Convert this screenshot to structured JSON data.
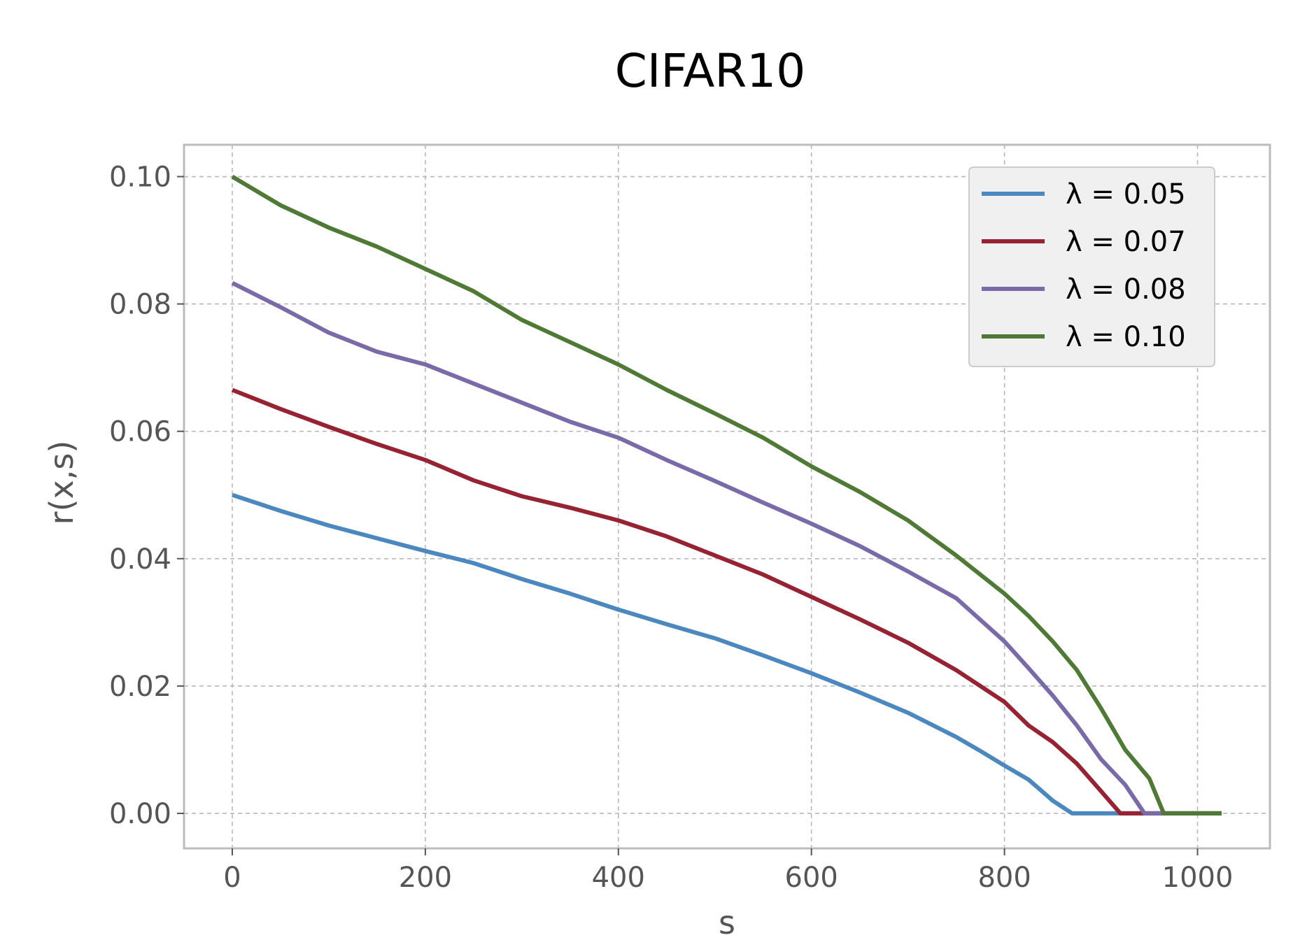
{
  "chart_data": {
    "type": "line",
    "title": "CIFAR10",
    "xlabel": "s",
    "ylabel": "r(x,s)",
    "xlim": [
      -50,
      1075
    ],
    "ylim": [
      -0.0055,
      0.105
    ],
    "xticks": [
      0,
      200,
      400,
      600,
      800,
      1000
    ],
    "xtick_labels": [
      "0",
      "200",
      "400",
      "600",
      "800",
      "1000"
    ],
    "yticks": [
      0.0,
      0.02,
      0.04,
      0.06,
      0.08,
      0.1
    ],
    "ytick_labels": [
      "0.00",
      "0.02",
      "0.04",
      "0.06",
      "0.08",
      "0.10"
    ],
    "grid": true,
    "legend_position": "top-right",
    "series": [
      {
        "name": "λ = 0.05",
        "color": "#4a88bf",
        "x": [
          0,
          50,
          100,
          150,
          200,
          250,
          300,
          350,
          400,
          450,
          500,
          550,
          600,
          650,
          700,
          750,
          775,
          800,
          825,
          850,
          870,
          920,
          1025
        ],
        "y": [
          0.05,
          0.0475,
          0.0452,
          0.0432,
          0.0412,
          0.0393,
          0.0368,
          0.0345,
          0.032,
          0.0297,
          0.0275,
          0.0248,
          0.022,
          0.019,
          0.0158,
          0.012,
          0.0098,
          0.0075,
          0.0053,
          0.002,
          0.0,
          0.0,
          0.0
        ]
      },
      {
        "name": "λ = 0.07",
        "color": "#962232",
        "x": [
          0,
          50,
          100,
          150,
          200,
          250,
          300,
          350,
          400,
          450,
          500,
          550,
          600,
          650,
          700,
          750,
          800,
          825,
          850,
          875,
          900,
          920,
          950,
          1025
        ],
        "y": [
          0.0665,
          0.0635,
          0.0607,
          0.058,
          0.0555,
          0.0523,
          0.0498,
          0.048,
          0.046,
          0.0435,
          0.0405,
          0.0375,
          0.034,
          0.0305,
          0.0268,
          0.0225,
          0.0175,
          0.0138,
          0.0112,
          0.0078,
          0.0035,
          0.0,
          0.0,
          0.0
        ]
      },
      {
        "name": "λ = 0.08",
        "color": "#7a6aaa",
        "x": [
          0,
          50,
          100,
          150,
          200,
          250,
          300,
          350,
          400,
          450,
          500,
          550,
          600,
          650,
          700,
          750,
          800,
          825,
          850,
          875,
          900,
          925,
          945,
          965,
          1025
        ],
        "y": [
          0.0833,
          0.0795,
          0.0755,
          0.0725,
          0.0705,
          0.0675,
          0.0645,
          0.0615,
          0.059,
          0.0555,
          0.0522,
          0.0488,
          0.0455,
          0.042,
          0.038,
          0.0338,
          0.027,
          0.0228,
          0.0185,
          0.0138,
          0.0085,
          0.0045,
          0.0,
          0.0,
          0.0
        ]
      },
      {
        "name": "λ = 0.10",
        "color": "#4f7a35",
        "x": [
          0,
          50,
          100,
          150,
          200,
          250,
          300,
          350,
          400,
          450,
          500,
          550,
          600,
          650,
          700,
          750,
          775,
          800,
          825,
          850,
          875,
          900,
          925,
          950,
          965,
          1025
        ],
        "y": [
          0.1,
          0.0955,
          0.092,
          0.089,
          0.0855,
          0.082,
          0.0775,
          0.074,
          0.0705,
          0.0665,
          0.0628,
          0.059,
          0.0545,
          0.0505,
          0.046,
          0.0405,
          0.0375,
          0.0345,
          0.031,
          0.027,
          0.0225,
          0.0165,
          0.01,
          0.0055,
          0.0,
          0.0
        ]
      }
    ]
  }
}
